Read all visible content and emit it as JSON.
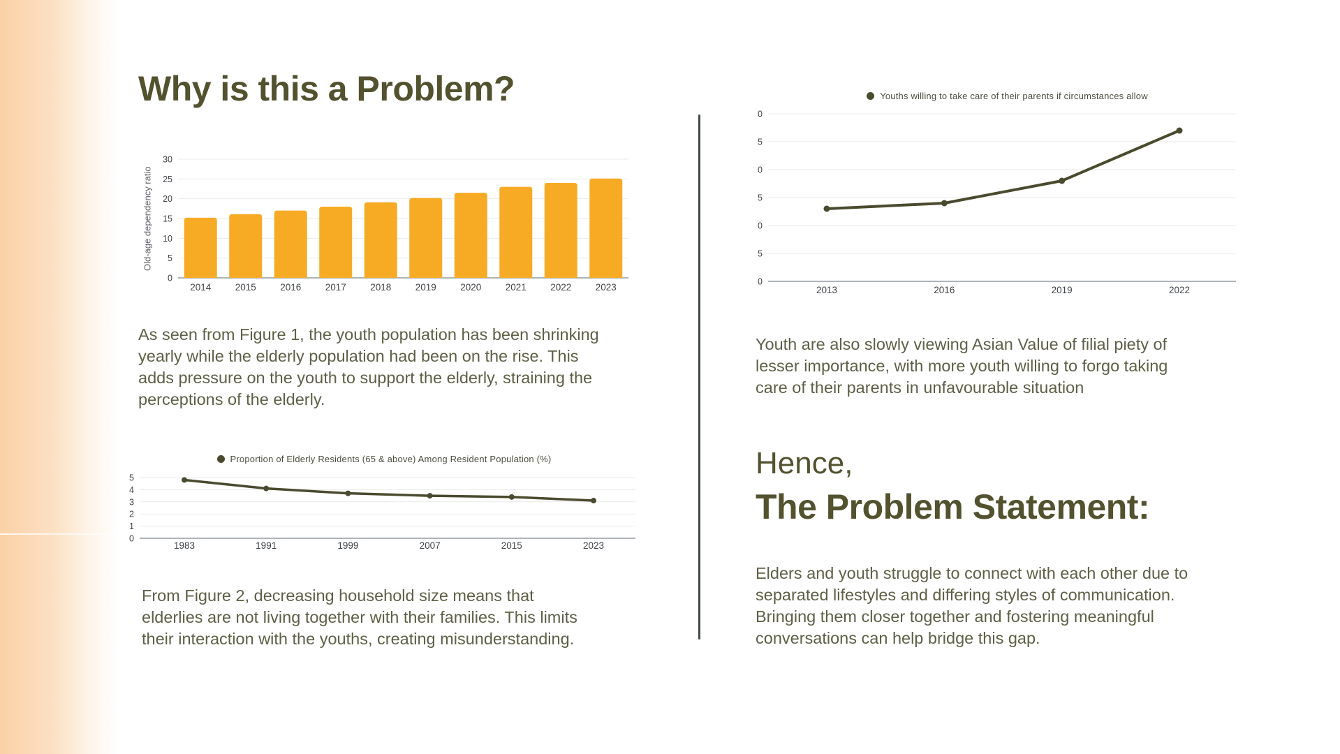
{
  "slide": {
    "title": "Why is this a Problem?",
    "figure1_caption": "As seen from Figure 1, the youth population has been shrinking\nyearly while the elderly population had been on the rise. This\nadds pressure on the youth to support the elderly, straining the\nperceptions of the elderly.",
    "figure2_caption": "From Figure 2, decreasing household size means that\nelderlies are not living together with their families. This limits\ntheir  interaction with the youths, creating misunderstanding.",
    "right_caption": "Youth are also slowly viewing Asian Value of filial piety of\nlesser importance, with more youth willing to forgo taking\ncare of their parents in unfavourable situation",
    "hence_line1": "Hence,",
    "hence_line2": "The Problem Statement:",
    "problem_statement": "Elders and youth struggle to connect with each other due to\nseparated lifestyles and differing styles of communication.\nBringing them closer together and fostering meaningful\nconversations can help bridge this gap."
  },
  "colors": {
    "heading": "#53522F",
    "body_text": "#5E5F46",
    "bar_fill": "#F7AB25",
    "line_stroke": "#4A4B2E",
    "legend_text": "#4C4D3D",
    "tick_text": "#3F4347",
    "axis_title_text": "#5F6368",
    "gridline": "#E8E9EA",
    "axis_baseline": "#AEB3B8",
    "divider": "#3E4B47",
    "gradient_start": "#FBD1A6",
    "background": "#FFFFFF"
  },
  "chart_data": [
    {
      "id": "figure1",
      "type": "bar",
      "categories": [
        "2014",
        "2015",
        "2016",
        "2017",
        "2018",
        "2019",
        "2020",
        "2021",
        "2022",
        "2023"
      ],
      "values": [
        15.2,
        16.1,
        17,
        18,
        19.1,
        20.2,
        21.5,
        23,
        24,
        25.1
      ],
      "title": "",
      "xlabel": "",
      "ylabel": "Old-age dependency ratio",
      "ylim": [
        0,
        30
      ],
      "ytick_step": 5,
      "grid": true,
      "legend_position": "none",
      "bar_color": "#F7AB25"
    },
    {
      "id": "figure2",
      "type": "line",
      "x": [
        "1983",
        "1991",
        "1999",
        "2007",
        "2015",
        "2023"
      ],
      "series": [
        {
          "name": "Proportion of Elderly Residents (65 & above) Among Resident Population (%)",
          "values": [
            4.8,
            4.1,
            3.7,
            3.5,
            3.4,
            3.1
          ]
        }
      ],
      "title": "",
      "xlabel": "",
      "ylabel": "",
      "ylim": [
        0,
        5
      ],
      "ytick_step": 1,
      "grid": true,
      "legend_position": "top",
      "line_color": "#4A4B2E"
    },
    {
      "id": "youths",
      "type": "line",
      "x": [
        "2013",
        "2016",
        "2019",
        "2022"
      ],
      "series": [
        {
          "name": "Youths willing to take care of their parents if circumstances allow",
          "values": [
            13,
            14,
            18,
            27
          ]
        }
      ],
      "title": "",
      "xlabel": "",
      "ylabel": "",
      "ylim": [
        0,
        30
      ],
      "ytick_step": 5,
      "grid": true,
      "legend_position": "top",
      "line_color": "#4A4B2E"
    }
  ]
}
